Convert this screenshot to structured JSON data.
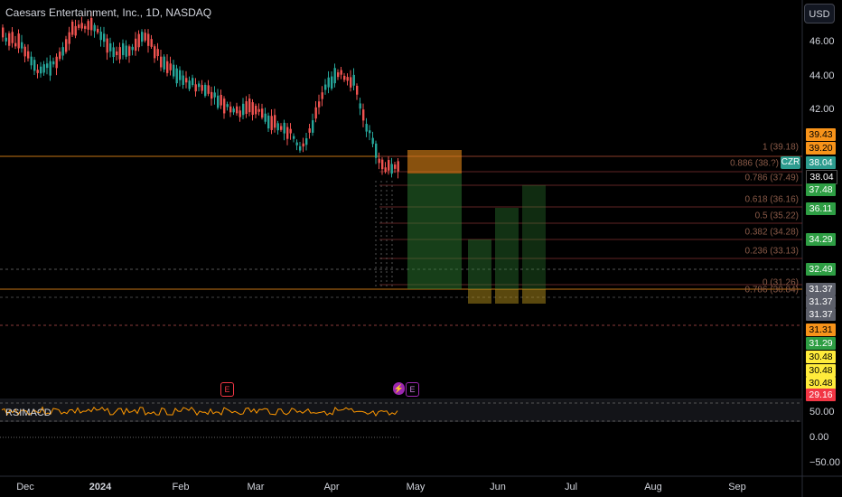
{
  "header": {
    "symbol_title": "Caesars Entertainment, Inc., 1D, NASDAQ",
    "currency": "USD"
  },
  "indicator": {
    "label": "RSIMACD"
  },
  "price_axis": {
    "ticks": [
      "46.00",
      "44.00",
      "42.00"
    ]
  },
  "indicator_axis": {
    "ticks": [
      "50.00",
      "0.00",
      "−50.00"
    ]
  },
  "time_axis": {
    "labels": [
      {
        "text": "Dec",
        "bold": false
      },
      {
        "text": "2024",
        "bold": true
      },
      {
        "text": "Feb",
        "bold": false
      },
      {
        "text": "Mar",
        "bold": false
      },
      {
        "text": "Apr",
        "bold": false
      },
      {
        "text": "May",
        "bold": false
      },
      {
        "text": "Jun",
        "bold": false
      },
      {
        "text": "Jul",
        "bold": false
      },
      {
        "text": "Aug",
        "bold": false
      },
      {
        "text": "Sep",
        "bold": false
      }
    ]
  },
  "ticker_badge": "CZR",
  "price_tags": [
    {
      "text": "39.43",
      "bg": "#f7931a",
      "fg": "#000000"
    },
    {
      "text": "39.20",
      "bg": "#f7931a",
      "fg": "#000000"
    },
    {
      "text": "38.04",
      "bg": "#2d9c8f",
      "fg": "#ffffff"
    },
    {
      "text": "38.04",
      "bg": "#000000",
      "fg": "#ffffff"
    },
    {
      "text": "37.48",
      "bg": "#2e9e44",
      "fg": "#ffffff"
    },
    {
      "text": "36.11",
      "bg": "#2e9e44",
      "fg": "#ffffff"
    },
    {
      "text": "34.29",
      "bg": "#2e9e44",
      "fg": "#ffffff"
    },
    {
      "text": "32.49",
      "bg": "#2e9e44",
      "fg": "#ffffff"
    },
    {
      "text": "31.37",
      "bg": "#5d606b",
      "fg": "#ffffff"
    },
    {
      "text": "31.37",
      "bg": "#5d606b",
      "fg": "#ffffff"
    },
    {
      "text": "31.37",
      "bg": "#5d606b",
      "fg": "#ffffff"
    },
    {
      "text": "31.31",
      "bg": "#f7931a",
      "fg": "#000000"
    },
    {
      "text": "31.29",
      "bg": "#2e9e44",
      "fg": "#ffffff"
    },
    {
      "text": "30.48",
      "bg": "#ffeb3b",
      "fg": "#000000"
    },
    {
      "text": "30.48",
      "bg": "#ffeb3b",
      "fg": "#000000"
    },
    {
      "text": "30.48",
      "bg": "#ffeb3b",
      "fg": "#000000"
    },
    {
      "text": "29.16",
      "bg": "#f23645",
      "fg": "#ffffff"
    }
  ],
  "fib_levels": [
    {
      "label": "1 (39.18)"
    },
    {
      "label": "0.886 (38.?)"
    },
    {
      "label": "0.786 (37.49)"
    },
    {
      "label": "0.618 (36.16)"
    },
    {
      "label": "0.5 (35.22)"
    },
    {
      "label": "0.382 (34.28)"
    },
    {
      "label": "0.236 (33.13)"
    },
    {
      "label": "0 (31.26)"
    },
    {
      "label": "0.786 (30.84)"
    }
  ],
  "events": [
    {
      "label": "E",
      "color": "#f23645"
    },
    {
      "label": "⚡",
      "color": "#9c27b0"
    },
    {
      "label": "E",
      "color": "#9c27b0"
    }
  ],
  "colors": {
    "up": "#26a69a",
    "down": "#ef5350",
    "rsi": "#ff9800",
    "fib": "#ef5350",
    "orange_line": "#f7931a"
  }
}
